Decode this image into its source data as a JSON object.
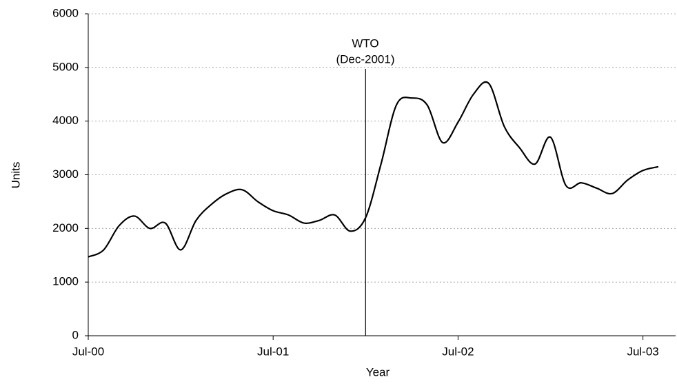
{
  "chart_data": {
    "type": "line",
    "xlabel": "Year",
    "ylabel": "Units",
    "categories": [
      "Jul-00",
      null,
      null,
      null,
      null,
      null,
      null,
      null,
      null,
      null,
      null,
      null,
      "Jul-01",
      null,
      null,
      null,
      null,
      null,
      null,
      null,
      null,
      null,
      null,
      null,
      "Jul-02",
      null,
      null,
      null,
      null,
      null,
      null,
      null,
      null,
      null,
      null,
      null,
      "Jul-03",
      null
    ],
    "series": [
      {
        "color": "#000000",
        "values": [
          1470,
          1600,
          2050,
          2230,
          2000,
          2100,
          1600,
          2150,
          2450,
          2650,
          2720,
          2500,
          2330,
          2250,
          2100,
          2150,
          2250,
          1950,
          2200,
          3200,
          4300,
          4430,
          4300,
          3600,
          3980,
          4500,
          4700,
          3900,
          3500,
          3200,
          3700,
          2800,
          2850,
          2750,
          2650,
          2900,
          3080,
          3150
        ]
      }
    ],
    "ylim": [
      0,
      6000
    ],
    "yticks": [
      0,
      1000,
      2000,
      3000,
      4000,
      5000,
      6000
    ],
    "grid": true,
    "annotation": [
      "WTO",
      "(Dec-2001)"
    ]
  }
}
